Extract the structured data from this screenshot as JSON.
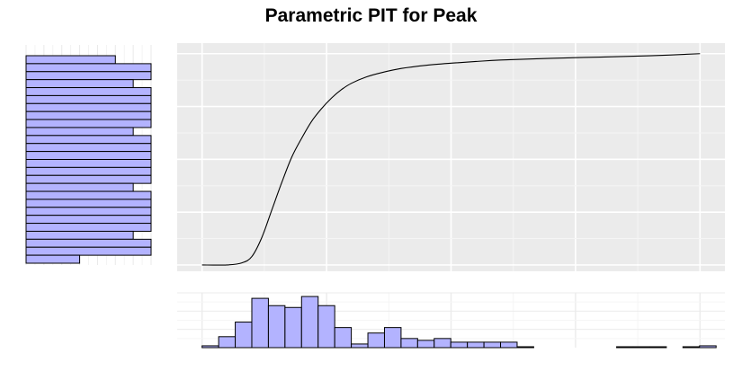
{
  "title": "Parametric PIT for Peak",
  "colors": {
    "panel_background": "#ebebeb",
    "grid_major": "#ffffff",
    "grid_minor": "#f5f5f5",
    "bar_fill": "#b3b3ff",
    "bar_stroke": "#000000",
    "curve": "#000000"
  },
  "chart_data": [
    {
      "type": "line",
      "panel": "main",
      "x": [
        0.0,
        0.05,
        0.08,
        0.1,
        0.12,
        0.14,
        0.16,
        0.18,
        0.2,
        0.22,
        0.24,
        0.26,
        0.28,
        0.3,
        0.33,
        0.36,
        0.4,
        0.45,
        0.5,
        0.55,
        0.6,
        0.7,
        0.8,
        0.9,
        1.0
      ],
      "y": [
        0.0,
        0.0,
        0.01,
        0.04,
        0.13,
        0.26,
        0.39,
        0.51,
        0.6,
        0.68,
        0.74,
        0.79,
        0.83,
        0.86,
        0.89,
        0.91,
        0.93,
        0.945,
        0.955,
        0.963,
        0.97,
        0.978,
        0.984,
        0.99,
        1.0
      ],
      "xlim": [
        -0.05,
        1.05
      ],
      "ylim": [
        -0.03,
        1.05
      ],
      "grid": true
    },
    {
      "type": "bar",
      "panel": "bottom-marginal",
      "bin_start": 0.0,
      "bin_width": 0.0333,
      "values": [
        1,
        6,
        14,
        27,
        23,
        22,
        28,
        23,
        11,
        2,
        8,
        11,
        5,
        4,
        5,
        3,
        3,
        3,
        3,
        0.5,
        0,
        0,
        0,
        0,
        0,
        0.5,
        0.5,
        0.5,
        0,
        0.5,
        1
      ],
      "ylim": [
        0,
        30
      ],
      "grid": true
    },
    {
      "type": "bar",
      "orientation": "horizontal",
      "panel": "left-marginal",
      "values": [
        5,
        7,
        7,
        6,
        7,
        7,
        7,
        7,
        7,
        6,
        7,
        7,
        7,
        7,
        7,
        7,
        6,
        7,
        7,
        7,
        7,
        7,
        6,
        7,
        7,
        3
      ],
      "xlim": [
        0,
        7
      ],
      "grid": true
    }
  ]
}
